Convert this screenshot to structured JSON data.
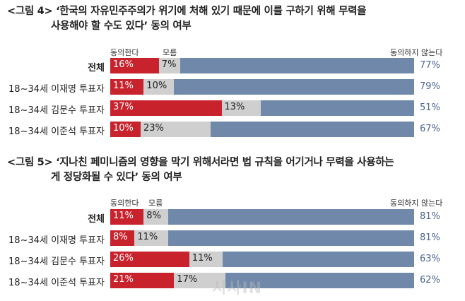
{
  "chart_data": [
    {
      "type": "bar",
      "title_line1": "<그림 4> ‘한국의 자유민주주의가 위기에 처해 있기 때문에 이를 구하기 위해 무력을",
      "title_line2": "사용해야 할 수도 있다’ 동의 여부",
      "legend": {
        "agree": "동의한다",
        "unsure": "모름",
        "disagree": "동의하지 않는다"
      },
      "categories": [
        "전체",
        "18~34세 이재명 투표자",
        "18~34세 김문수 투표자",
        "18~34세 이준석 투표자"
      ],
      "series": [
        {
          "name": "동의한다",
          "values": [
            16,
            11,
            37,
            10
          ]
        },
        {
          "name": "모름",
          "values": [
            7,
            10,
            13,
            23
          ]
        },
        {
          "name": "동의하지 않는다",
          "values": [
            77,
            79,
            51,
            67
          ]
        }
      ],
      "unit": "%"
    },
    {
      "type": "bar",
      "title_line1": "<그림 5> ‘지나친 페미니즘의 영향을 막기 위해서라면 법 규칙을 어기거나 무력을 사용하는",
      "title_line2": "게 정당화될 수 있다’ 동의 여부",
      "legend": {
        "agree": "동의한다",
        "unsure": "모름",
        "disagree": "동의하지 않는다"
      },
      "categories": [
        "전체",
        "18~34세 이재명 투표자",
        "18~34세 김문수 투표자",
        "18~34세 이준석 투표자"
      ],
      "series": [
        {
          "name": "동의한다",
          "values": [
            11,
            8,
            26,
            21
          ]
        },
        {
          "name": "모름",
          "values": [
            8,
            11,
            11,
            17
          ]
        },
        {
          "name": "동의하지 않는다",
          "values": [
            81,
            81,
            63,
            62
          ]
        }
      ],
      "unit": "%"
    }
  ],
  "colors": {
    "agree": "#c8232c",
    "unsure": "#cfcfcf",
    "disagree": "#7089aa"
  },
  "watermark": "시사IN"
}
